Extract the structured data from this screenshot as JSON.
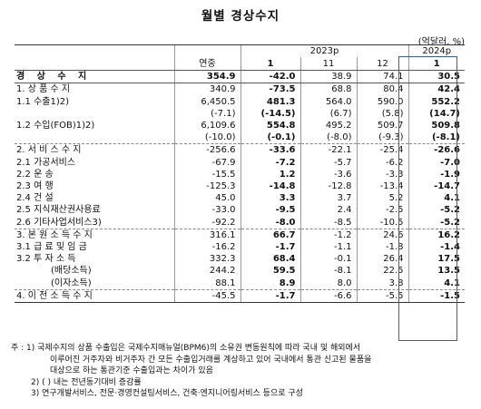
{
  "title": "월별 경상수지",
  "unit": "(억달러, %)",
  "header": {
    "year_2023": "2023p",
    "year_2024": "2024p",
    "annual": "연중",
    "months": [
      "1",
      "11",
      "12",
      "1"
    ]
  },
  "rows": [
    {
      "label": "경 상 수 지",
      "v": [
        "354.9",
        "-42.0",
        "38.9",
        "74.1",
        "30.5"
      ]
    },
    {
      "label": "1. 상 품 수 지",
      "v": [
        "340.9",
        "-73.5",
        "68.8",
        "80.4",
        "42.4"
      ]
    },
    {
      "label": "1.1 수출1)2)",
      "v": [
        "6,450.5",
        "481.3",
        "564.0",
        "590.0",
        "552.2"
      ]
    },
    {
      "label": "",
      "v": [
        "(-7.1)",
        "(-14.5)",
        "(6.7)",
        "(5.8)",
        "(14.7)"
      ]
    },
    {
      "label": "1.2 수입(FOB)1)2)",
      "v": [
        "6,109.6",
        "554.8",
        "495.2",
        "509.7",
        "509.8"
      ]
    },
    {
      "label": "",
      "v": [
        "(-10.0)",
        "(-0.1)",
        "(-8.0)",
        "(-9.3)",
        "(-8.1)"
      ]
    },
    {
      "label": "2. 서 비 스 수 지",
      "v": [
        "-256.6",
        "-33.6",
        "-22.1",
        "-25.4",
        "-26.6"
      ]
    },
    {
      "label": "2.1 가공서비스",
      "v": [
        "-67.9",
        "-7.2",
        "-5.7",
        "-6.2",
        "-7.0"
      ]
    },
    {
      "label": "2.2 운 송",
      "v": [
        "-15.5",
        "1.2",
        "-3.6",
        "-3.3",
        "-1.9"
      ]
    },
    {
      "label": "2.3 여 행",
      "v": [
        "-125.3",
        "-14.8",
        "-12.8",
        "-13.4",
        "-14.7"
      ]
    },
    {
      "label": "2.4 건 설",
      "v": [
        "45.0",
        "3.3",
        "3.7",
        "5.2",
        "4.1"
      ]
    },
    {
      "label": "2.5 지식재산권사용료",
      "v": [
        "-33.0",
        "-9.5",
        "2.4",
        "-2.5",
        "-5.2"
      ]
    },
    {
      "label": "2.6 기타사업서비스3)",
      "v": [
        "-92.2",
        "-8.0",
        "-8.5",
        "-10.5",
        "-5.2"
      ]
    },
    {
      "label": "3. 본 원 소 득 수 지",
      "v": [
        "316.1",
        "66.7",
        "-1.2",
        "24.6",
        "16.2"
      ]
    },
    {
      "label": "3.1 급 료 및 임 금",
      "v": [
        "-16.2",
        "-1.7",
        "-1.1",
        "-1.8",
        "-1.4"
      ]
    },
    {
      "label": "3.2 투 자 소 득",
      "v": [
        "332.3",
        "68.4",
        "-0.1",
        "26.4",
        "17.5"
      ]
    },
    {
      "label": "(배당소득)",
      "v": [
        "244.2",
        "59.5",
        "-8.1",
        "22.5",
        "13.5"
      ]
    },
    {
      "label": "(이자소득)",
      "v": [
        "88.1",
        "8.9",
        "8.0",
        "3.8",
        "4.1"
      ]
    },
    {
      "label": "4. 이 전 소 득 수 지",
      "v": [
        "-45.5",
        "-1.7",
        "-6.6",
        "-5.5",
        "-1.5"
      ]
    }
  ],
  "notes": {
    "note1_label": "주 : 1)",
    "note1_line1": "국제수지의 상품 수출입은 국제수지매뉴얼(BPM6)의 소유권 변동원칙에 따라 국내 및 해외에서",
    "note1_line2": "이루어진 거주자와 비거주자 간 모든 수출입거래를 계상하고 있어 국내에서 통관 신고된 물품을",
    "note1_line3": "대상으로 하는 통관기준 수출입과는 차이가 있음",
    "note2": "2) (  ) 내는 전년동기대비 증감률",
    "note3": "3) 연구개발서비스, 전문·경영컨설팅서비스, 건축·엔지니어링서비스 등으로 구성"
  }
}
